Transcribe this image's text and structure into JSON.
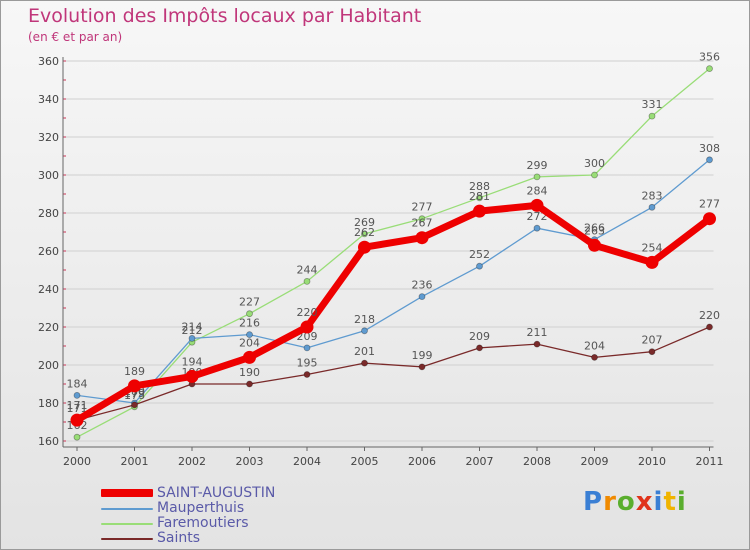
{
  "title": "Evolution des Impôts locaux par Habitant",
  "subtitle": "(en € et par an)",
  "logo": {
    "text": "Proxiti",
    "letter_colors": [
      "#3a7fd4",
      "#f08a00",
      "#5aae2e",
      "#e0331a",
      "#3a7fd4",
      "#f0b400",
      "#5aae2e"
    ]
  },
  "chart_data": {
    "type": "line",
    "categories": [
      "2000",
      "2001",
      "2002",
      "2003",
      "2004",
      "2005",
      "2006",
      "2007",
      "2008",
      "2009",
      "2010",
      "2011"
    ],
    "ylim": [
      160,
      360
    ],
    "yticks": [
      160,
      180,
      200,
      220,
      240,
      260,
      280,
      300,
      320,
      340,
      360
    ],
    "series": [
      {
        "name": "Faremoutiers",
        "color": "#99dd77",
        "values": [
          162,
          178,
          212,
          227,
          244,
          269,
          277,
          288,
          299,
          300,
          331,
          356
        ],
        "labels": [
          "162",
          "178",
          "212",
          "227",
          "244",
          "269",
          "277",
          "288",
          "299",
          "300",
          "331",
          "356"
        ]
      },
      {
        "name": "Mauperthuis",
        "color": "#5f9bd0",
        "values": [
          184,
          180,
          214,
          216,
          209,
          218,
          236,
          252,
          272,
          266,
          283,
          308
        ],
        "labels": [
          "184",
          "180",
          "214",
          "216",
          "209",
          "218",
          "236",
          "252",
          "272",
          "266",
          "283",
          "308"
        ]
      },
      {
        "name": "Saints",
        "color": "#7a2a2a",
        "values": [
          171,
          179,
          190,
          190,
          195,
          201,
          199,
          209,
          211,
          204,
          207,
          220
        ],
        "labels": [
          "171",
          "179",
          "190",
          "190",
          "195",
          "201",
          "199",
          "209",
          "211",
          "204",
          "207",
          "220"
        ]
      },
      {
        "name": "SAINT-AUGUSTIN",
        "color": "#ee0000",
        "values": [
          171,
          189,
          194,
          204,
          220,
          262,
          267,
          281,
          284,
          263,
          254,
          277
        ],
        "labels": [
          "171",
          "189",
          "194",
          "204",
          "220",
          "262",
          "267",
          "281",
          "284",
          "263",
          "254",
          "277"
        ]
      }
    ],
    "legend": [
      {
        "name": "SAINT-AUGUSTIN",
        "color": "#ee0000"
      },
      {
        "name": "Mauperthuis",
        "color": "#5f9bd0"
      },
      {
        "name": "Faremoutiers",
        "color": "#99dd77"
      },
      {
        "name": "Saints",
        "color": "#7a2a2a"
      }
    ]
  }
}
